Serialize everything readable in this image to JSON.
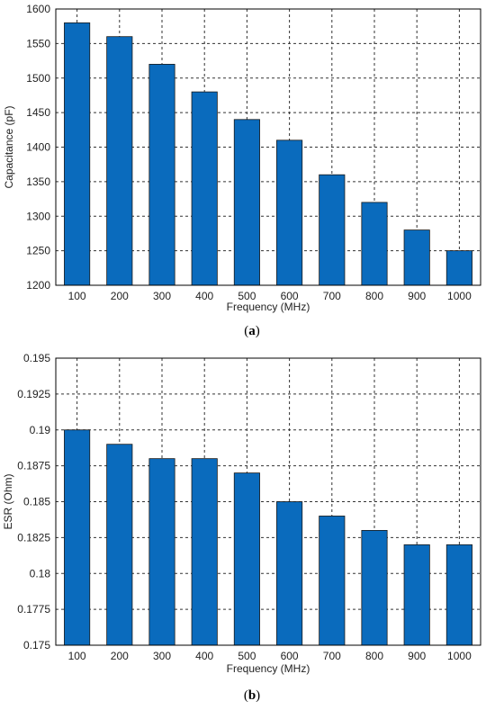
{
  "colors": {
    "bar": "#0a6bbd"
  },
  "chart_data": [
    {
      "type": "bar",
      "categories": [
        "100",
        "200",
        "300",
        "400",
        "500",
        "600",
        "700",
        "800",
        "900",
        "1000"
      ],
      "values": [
        1580,
        1560,
        1520,
        1480,
        1440,
        1410,
        1360,
        1320,
        1280,
        1250
      ],
      "xlabel": "Frequency (MHz)",
      "ylabel": "Capacitance (pF)",
      "ylim": [
        1200,
        1600
      ],
      "yticks": [
        "1200",
        "1250",
        "1300",
        "1350",
        "1400",
        "1450",
        "1500",
        "1550",
        "1600"
      ],
      "grid": true,
      "panel_open": "(",
      "panel_letter": "a",
      "panel_close": ")"
    },
    {
      "type": "bar",
      "categories": [
        "100",
        "200",
        "300",
        "400",
        "500",
        "600",
        "700",
        "800",
        "900",
        "1000"
      ],
      "values": [
        0.19,
        0.189,
        0.188,
        0.188,
        0.187,
        0.185,
        0.184,
        0.183,
        0.182,
        0.182
      ],
      "xlabel": "Frequency (MHz)",
      "ylabel": "ESR (Ohm)",
      "ylim": [
        0.175,
        0.195
      ],
      "yticks": [
        "0.175",
        "0.1775",
        "0.18",
        "0.1825",
        "0.185",
        "0.1875",
        "0.19",
        "0.1925",
        "0.195"
      ],
      "grid": true,
      "panel_open": "(",
      "panel_letter": "b",
      "panel_close": ")"
    }
  ]
}
